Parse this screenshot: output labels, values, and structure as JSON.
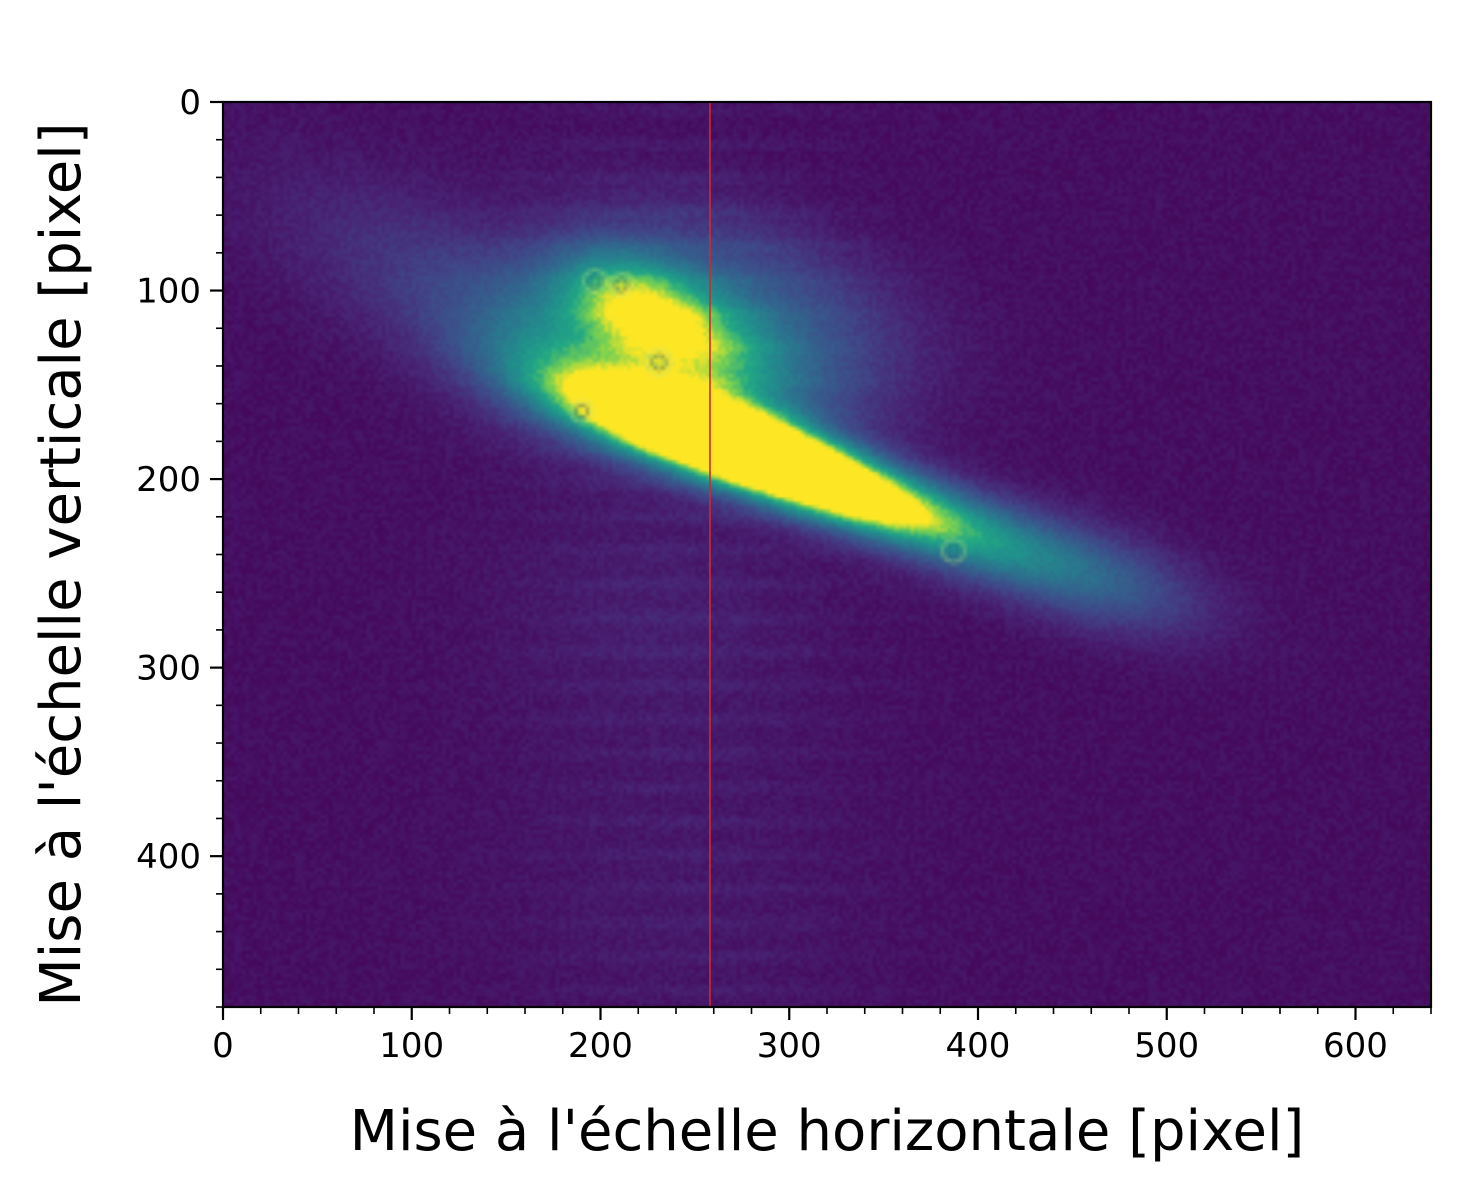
{
  "chart_data": {
    "type": "heatmap",
    "title": "",
    "xlabel": "Mise à l'échelle horizontale [pixel]",
    "ylabel": "Mise à l'échelle verticale [pixel]",
    "xlim": [
      0,
      640
    ],
    "ylim": [
      480,
      0
    ],
    "x_ticks": [
      0,
      100,
      200,
      300,
      400,
      500,
      600
    ],
    "x_tick_labels": [
      "0",
      "100",
      "200",
      "300",
      "400",
      "500",
      "600"
    ],
    "y_ticks": [
      0,
      100,
      200,
      300,
      400
    ],
    "y_tick_labels": [
      "0",
      "100",
      "200",
      "300",
      "400"
    ],
    "x_minor_step": 20,
    "y_minor_step": 20,
    "colormap": "viridis",
    "background_color": "#440d58",
    "image_description": "Camera image of a diagonal bright streak running from upper-left (~x 50, y 50) to lower-right (~x 480, y 270), brightest near x 260-300, y 170-195.",
    "blobs": [
      {
        "x": 270,
        "y": 180,
        "sx": 45,
        "sy": 14,
        "angle": 22,
        "intensity": 1.0
      },
      {
        "x": 230,
        "y": 172,
        "sx": 45,
        "sy": 13,
        "angle": 20,
        "intensity": 0.85
      },
      {
        "x": 310,
        "y": 197,
        "sx": 40,
        "sy": 12,
        "angle": 22,
        "intensity": 0.8
      },
      {
        "x": 360,
        "y": 215,
        "sx": 45,
        "sy": 13,
        "angle": 20,
        "intensity": 0.5
      },
      {
        "x": 420,
        "y": 238,
        "sx": 50,
        "sy": 16,
        "angle": 18,
        "intensity": 0.3
      },
      {
        "x": 470,
        "y": 255,
        "sx": 40,
        "sy": 18,
        "angle": 18,
        "intensity": 0.15
      },
      {
        "x": 215,
        "y": 105,
        "sx": 30,
        "sy": 18,
        "angle": 20,
        "intensity": 0.55
      },
      {
        "x": 250,
        "y": 130,
        "sx": 35,
        "sy": 20,
        "angle": 25,
        "intensity": 0.55
      },
      {
        "x": 180,
        "y": 135,
        "sx": 40,
        "sy": 25,
        "angle": 25,
        "intensity": 0.35
      },
      {
        "x": 120,
        "y": 100,
        "sx": 70,
        "sy": 28,
        "angle": 28,
        "intensity": 0.15
      },
      {
        "x": 280,
        "y": 95,
        "sx": 60,
        "sy": 25,
        "angle": 20,
        "intensity": 0.2
      },
      {
        "x": 300,
        "y": 145,
        "sx": 40,
        "sy": 25,
        "angle": 20,
        "intensity": 0.2
      },
      {
        "x": 230,
        "y": 270,
        "sx": 60,
        "sy": 50,
        "angle": 0,
        "intensity": 0.05
      },
      {
        "x": 240,
        "y": 420,
        "sx": 70,
        "sy": 60,
        "angle": 0,
        "intensity": 0.03
      }
    ],
    "rings": [
      {
        "x": 197,
        "y": 95,
        "r": 6
      },
      {
        "x": 211,
        "y": 97,
        "r": 6
      },
      {
        "x": 231,
        "y": 138,
        "r": 7
      },
      {
        "x": 190,
        "y": 164,
        "r": 6
      },
      {
        "x": 387,
        "y": 238,
        "r": 6
      }
    ],
    "vertical_line": {
      "x": 258,
      "color": "#d62728"
    }
  }
}
